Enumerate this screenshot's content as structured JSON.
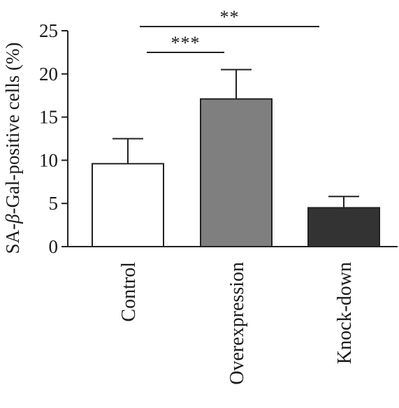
{
  "chart_data": {
    "type": "bar",
    "title": "",
    "xlabel": "",
    "ylabel": "SA-β-Gal-positive cells (%)",
    "ylabel_parts": [
      "SA-",
      "β",
      "-Gal-positive cells (%)"
    ],
    "ylim": [
      0,
      25
    ],
    "yticks": [
      0,
      5,
      10,
      15,
      20,
      25
    ],
    "ytick_labels": [
      "0",
      "5",
      "10",
      "15",
      "20",
      "25"
    ],
    "categories": [
      "Control",
      "Overexpression",
      "Knock-down"
    ],
    "values": [
      9.6,
      17.1,
      4.5
    ],
    "error_upper": [
      12.5,
      20.5,
      5.8
    ],
    "bar_colors": [
      "#ffffff",
      "#7f7f7f",
      "#333333"
    ],
    "grid": false,
    "significance": [
      {
        "between": [
          "Control",
          "Overexpression"
        ],
        "label": "***"
      },
      {
        "between": [
          "Control",
          "Knock-down"
        ],
        "label": "**"
      }
    ]
  }
}
